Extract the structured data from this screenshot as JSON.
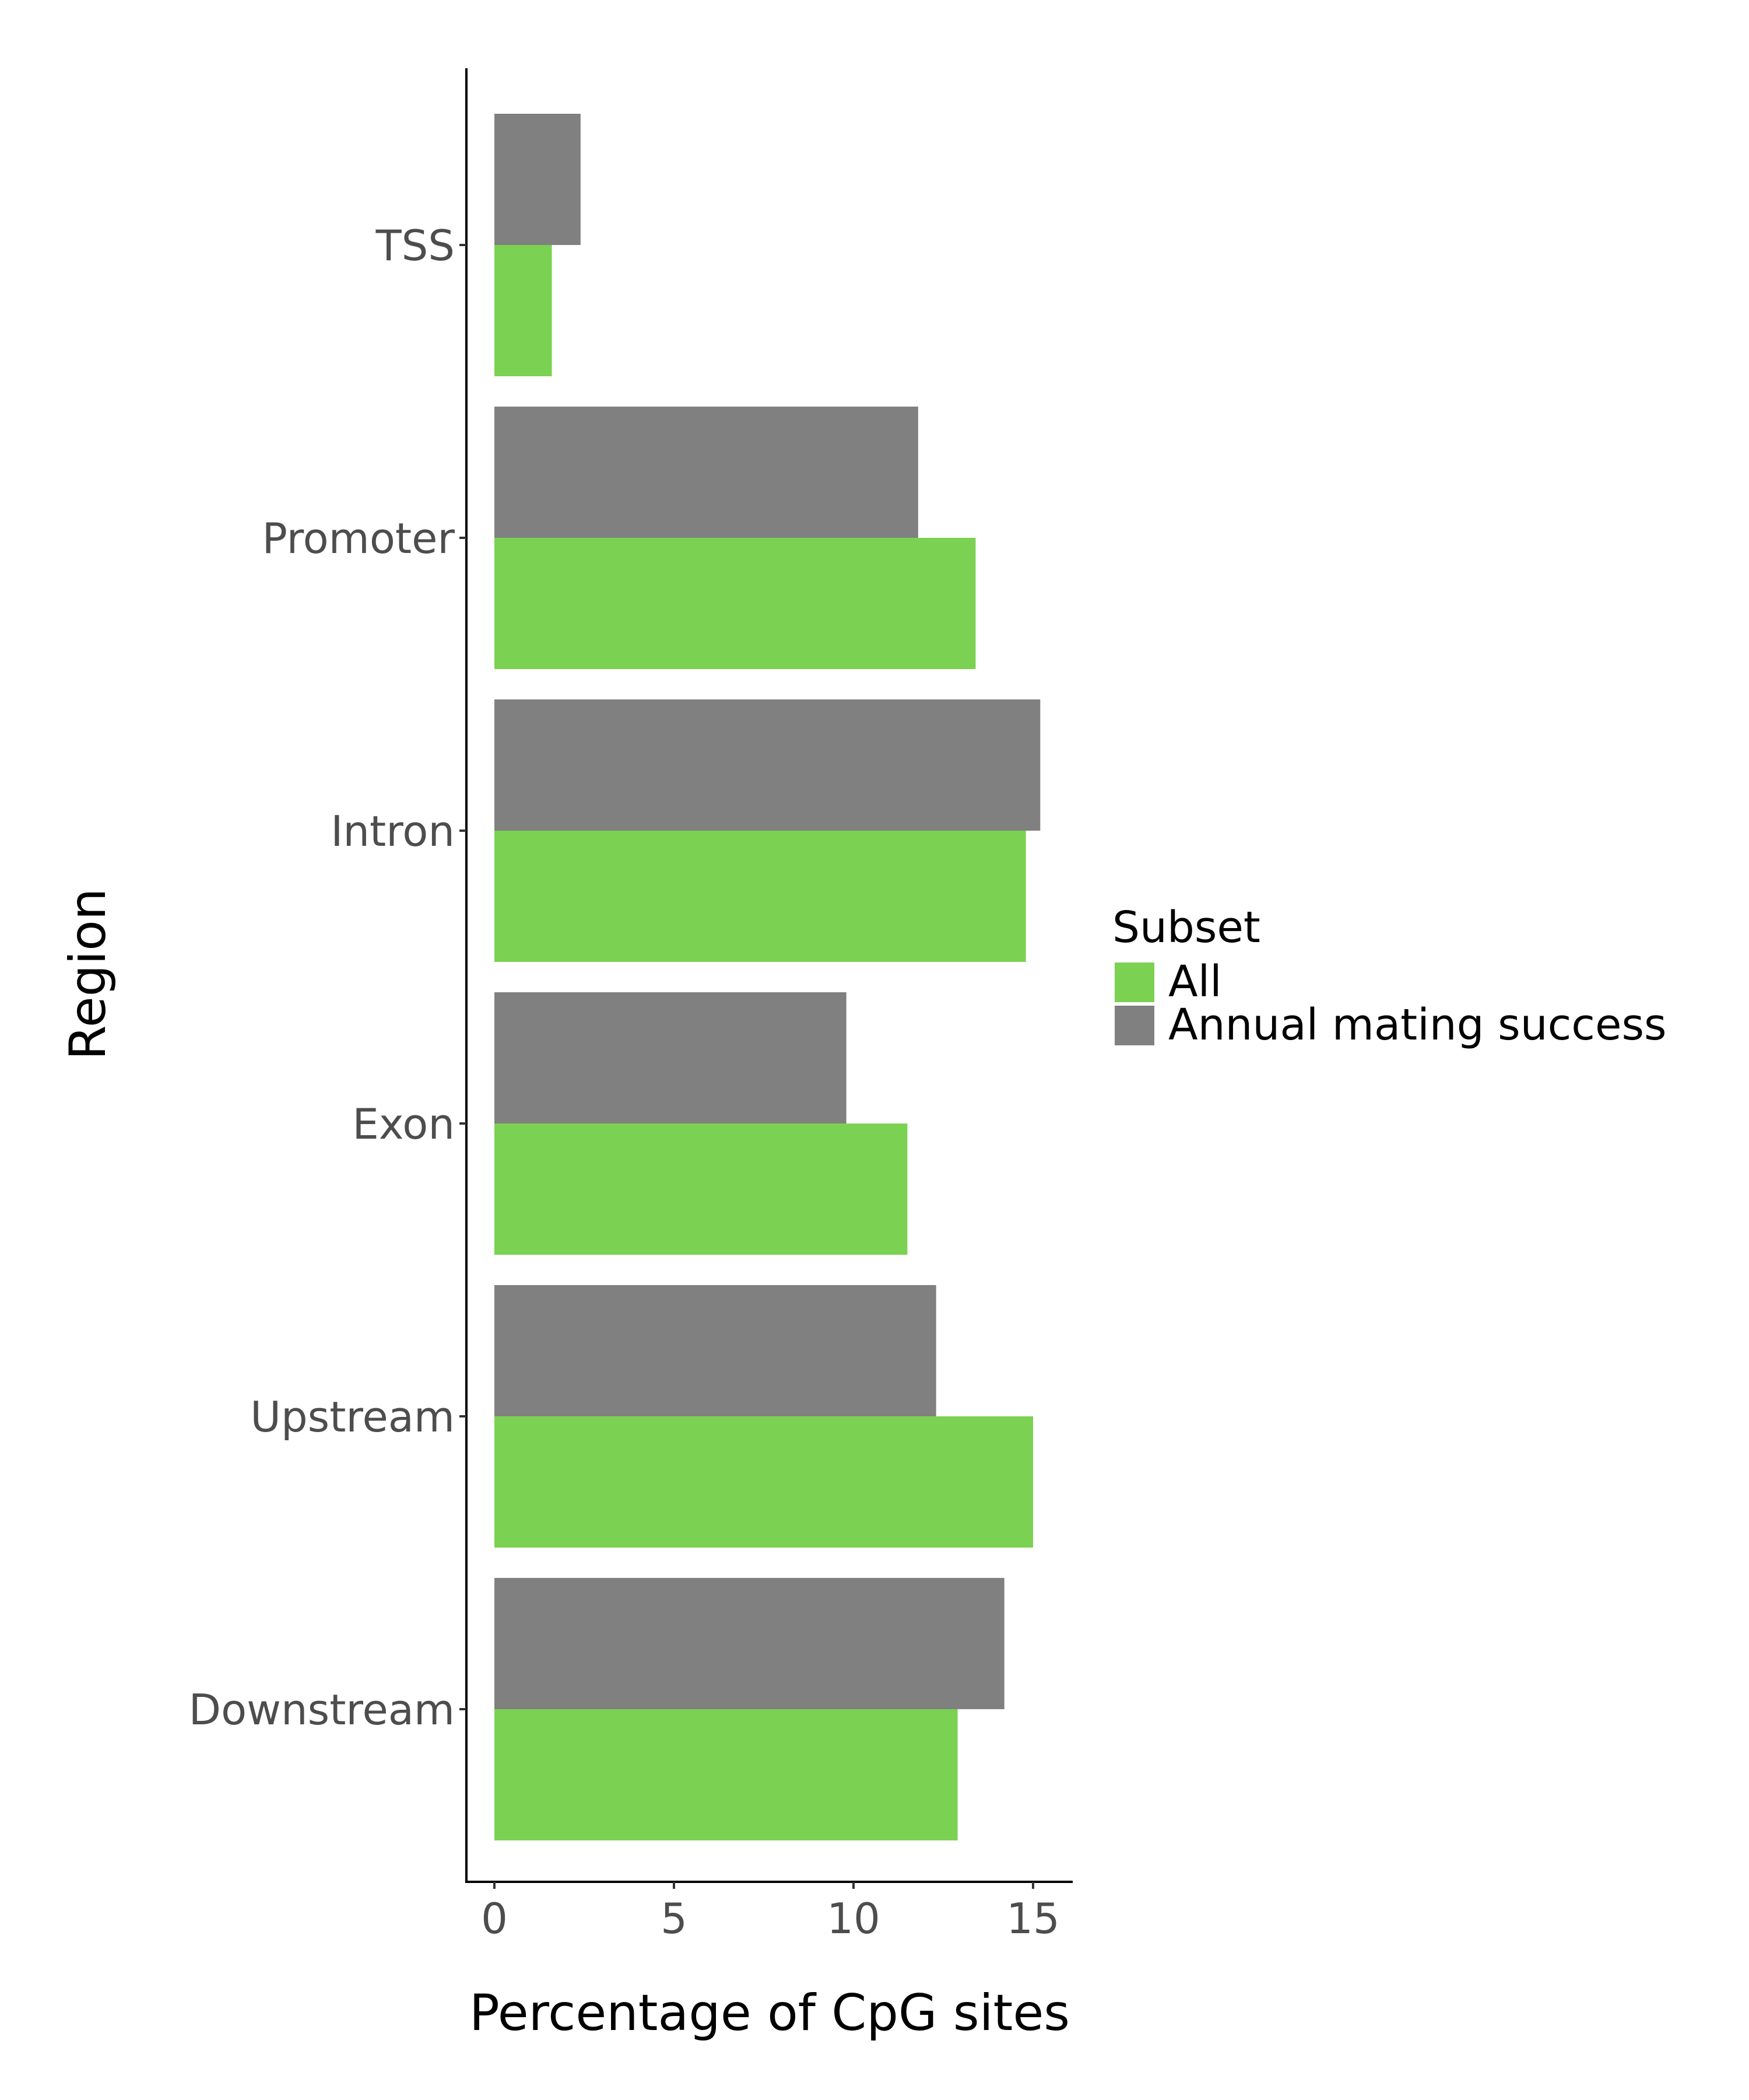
{
  "chart_data": {
    "type": "bar",
    "orientation": "horizontal",
    "categories": [
      "TSS",
      "Promoter",
      "Intron",
      "Exon",
      "Upstream",
      "Downstream"
    ],
    "series": [
      {
        "name": "All",
        "color": "#7bd151",
        "values": [
          1.6,
          13.4,
          14.8,
          11.5,
          15.0,
          12.9
        ]
      },
      {
        "name": "Annual mating success",
        "color": "#808080",
        "values": [
          2.4,
          11.8,
          15.2,
          9.8,
          12.3,
          14.2
        ]
      }
    ],
    "xlabel": "Percentage of CpG sites",
    "ylabel": "Region",
    "xlim": [
      0,
      16
    ],
    "xticks": [
      0,
      5,
      10,
      15
    ],
    "grid": false,
    "legend": {
      "title": "Subset",
      "placement": "right"
    }
  }
}
